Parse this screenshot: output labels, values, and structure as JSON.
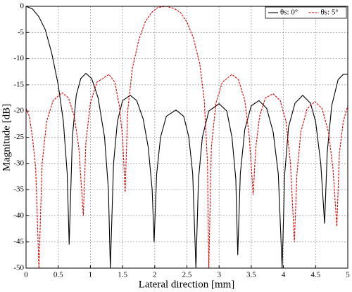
{
  "chart_data": {
    "type": "line",
    "xlabel": "Lateral direction [mm]",
    "ylabel": "Magnitude [dB]",
    "xlim": [
      0,
      5
    ],
    "ylim": [
      -50,
      0
    ],
    "xticks": [
      0,
      0.5,
      1,
      1.5,
      2,
      2.5,
      3,
      3.5,
      4,
      4.5,
      5
    ],
    "yticks": [
      0,
      -5,
      -10,
      -15,
      -20,
      -25,
      -30,
      -35,
      -40,
      -45,
      -50
    ],
    "grid": true,
    "legend": "upper right",
    "series": [
      {
        "name": "θs: 0°",
        "color": "#000000",
        "linestyle": "solid",
        "x": [
          0,
          0.1,
          0.2,
          0.3,
          0.4,
          0.5,
          0.58,
          0.64,
          0.67,
          0.72,
          0.78,
          0.85,
          0.93,
          1.02,
          1.12,
          1.22,
          1.28,
          1.31,
          1.36,
          1.42,
          1.5,
          1.62,
          1.72,
          1.82,
          1.9,
          1.96,
          1.99,
          2.03,
          2.09,
          2.18,
          2.33,
          2.45,
          2.53,
          2.59,
          2.64,
          2.68,
          2.74,
          2.84,
          3.0,
          3.12,
          3.2,
          3.26,
          3.29,
          3.33,
          3.4,
          3.5,
          3.62,
          3.74,
          3.84,
          3.92,
          3.98,
          4.02,
          4.08,
          4.18,
          4.3,
          4.42,
          4.5,
          4.58,
          4.64,
          4.68,
          4.75,
          4.85,
          4.93,
          5.0
        ],
        "values": [
          0,
          -0.5,
          -2,
          -4.5,
          -9,
          -15,
          -22,
          -32,
          -45.5,
          -25,
          -17,
          -13.8,
          -12.8,
          -13.8,
          -17.5,
          -25,
          -35,
          -50,
          -30,
          -22,
          -18,
          -17,
          -18,
          -21.5,
          -27,
          -35,
          -45,
          -32,
          -25,
          -21,
          -19.8,
          -21,
          -25,
          -32,
          -50,
          -33,
          -25,
          -20,
          -18.6,
          -20,
          -25,
          -33,
          -47.5,
          -32,
          -23.5,
          -19,
          -18,
          -19.5,
          -24,
          -32,
          -50,
          -32,
          -23,
          -18.5,
          -17,
          -18.5,
          -22,
          -30,
          -41.5,
          -28,
          -19,
          -14,
          -13,
          -13
        ]
      },
      {
        "name": "θs: 5°",
        "color": "#e00000",
        "linestyle": "dashed",
        "x": [
          0,
          0.05,
          0.1,
          0.15,
          0.2,
          0.25,
          0.32,
          0.42,
          0.56,
          0.66,
          0.75,
          0.82,
          0.89,
          0.93,
          1.0,
          1.1,
          1.29,
          1.38,
          1.45,
          1.5,
          1.54,
          1.58,
          1.65,
          1.75,
          1.85,
          1.95,
          2.05,
          2.18,
          2.3,
          2.4,
          2.5,
          2.6,
          2.7,
          2.77,
          2.82,
          2.84,
          2.88,
          2.95,
          3.05,
          3.2,
          3.3,
          3.4,
          3.47,
          3.53,
          3.57,
          3.63,
          3.72,
          3.84,
          3.95,
          4.04,
          4.11,
          4.17,
          4.21,
          4.27,
          4.37,
          4.49,
          4.6,
          4.7,
          4.77,
          4.83,
          4.87,
          4.93,
          5.0
        ],
        "values": [
          -19.5,
          -21,
          -25,
          -31,
          -50,
          -30,
          -22,
          -18,
          -16.5,
          -17.5,
          -21,
          -27,
          -40,
          -26,
          -18.5,
          -14.5,
          -13,
          -14.5,
          -19,
          -25,
          -35.5,
          -20,
          -12,
          -6.5,
          -3,
          -1.2,
          -0.2,
          0,
          -0.4,
          -1.2,
          -3,
          -6,
          -11,
          -18,
          -30,
          -50,
          -27,
          -18.5,
          -14.5,
          -13,
          -14,
          -18,
          -25,
          -36,
          -27,
          -21,
          -17.5,
          -16.7,
          -18,
          -22,
          -30,
          -45,
          -32,
          -24,
          -19.5,
          -18.2,
          -19.5,
          -24,
          -31,
          -42,
          -28,
          -22,
          -19
        ]
      }
    ]
  }
}
